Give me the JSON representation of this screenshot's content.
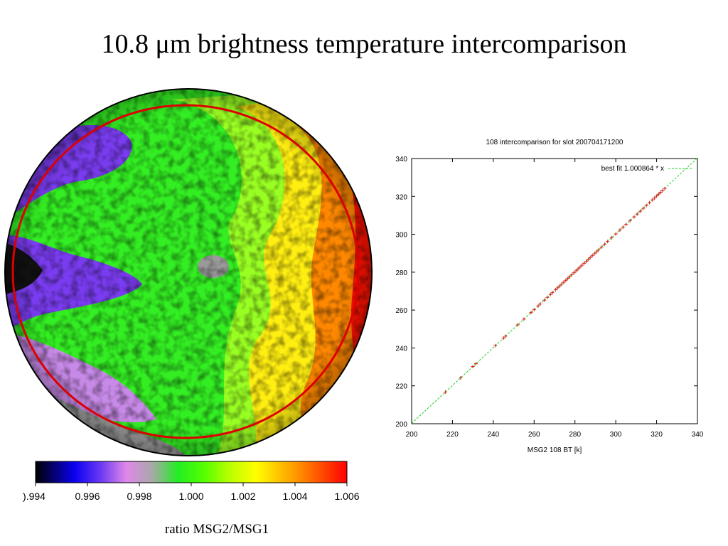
{
  "slide": {
    "title": "10.8 μm brightness temperature intercomparison",
    "caption": "ratio MSG2/MSG1"
  },
  "colorbar": {
    "tick_labels": [
      ").994",
      "0.996",
      "0.998",
      "1.000",
      "1.002",
      "1.004",
      "1.006"
    ],
    "range": [
      0.994,
      1.006
    ],
    "stops": [
      {
        "value": 0.994,
        "color": "#000000"
      },
      {
        "value": 0.9955,
        "color": "#0a00f0"
      },
      {
        "value": 0.9965,
        "color": "#6a38f5"
      },
      {
        "value": 0.9975,
        "color": "#e088e8"
      },
      {
        "value": 0.9985,
        "color": "#a8a8a8"
      },
      {
        "value": 0.9995,
        "color": "#22ee22"
      },
      {
        "value": 1.0005,
        "color": "#55ff00"
      },
      {
        "value": 1.0015,
        "color": "#bbff00"
      },
      {
        "value": 1.0025,
        "color": "#ffff00"
      },
      {
        "value": 1.004,
        "color": "#ff9a00"
      },
      {
        "value": 1.006,
        "color": "#ff0000"
      }
    ]
  },
  "disk": {
    "colors": {
      "green": "#33ee22",
      "lime": "#99ff22",
      "yellow": "#ffee11",
      "orange": "#ff8800",
      "red": "#ff1100",
      "purple": "#7a3cf0",
      "violet": "#c88ae8",
      "grey": "#9a9a9a",
      "ring": "#dd0000"
    }
  },
  "chart_data": {
    "type": "scatter",
    "title": "108 intercomparison for slot 200704171200",
    "xlabel": "MSG2 108 BT [k]",
    "ylabel": "",
    "xlim": [
      200,
      340
    ],
    "ylim": [
      200,
      340
    ],
    "xticks": [
      200,
      220,
      240,
      260,
      280,
      300,
      320,
      340
    ],
    "yticks": [
      200,
      220,
      240,
      260,
      280,
      300,
      320,
      340
    ],
    "grid": false,
    "legend": {
      "label": "best fit 1.000864 * x",
      "placement": "top-right"
    },
    "fit": {
      "slope": 1.000864,
      "color": "#22cc22"
    },
    "series": [
      {
        "marker_color": "#dd2222",
        "points": [
          [
            216.5,
            216.7
          ],
          [
            224,
            224.2
          ],
          [
            230,
            230.2
          ],
          [
            231.5,
            231.7
          ],
          [
            241,
            241.2
          ],
          [
            245,
            245.2
          ],
          [
            246,
            246.2
          ],
          [
            252,
            252.2
          ],
          [
            255,
            255.2
          ],
          [
            258.5,
            258.7
          ],
          [
            260,
            260.2
          ],
          [
            262,
            262.2
          ],
          [
            263,
            263.2
          ],
          [
            265,
            265.2
          ],
          [
            266.5,
            266.7
          ],
          [
            268,
            268.2
          ],
          [
            269,
            269.2
          ],
          [
            270.5,
            270.7
          ],
          [
            271.5,
            271.7
          ],
          [
            272.5,
            272.7
          ],
          [
            273.5,
            273.7
          ],
          [
            274.5,
            274.7
          ],
          [
            275.5,
            275.7
          ],
          [
            276.5,
            276.7
          ],
          [
            277.5,
            277.7
          ],
          [
            278.5,
            278.7
          ],
          [
            279.5,
            279.7
          ],
          [
            280.5,
            280.7
          ],
          [
            281.5,
            281.7
          ],
          [
            282.5,
            282.7
          ],
          [
            283.5,
            283.7
          ],
          [
            284.5,
            284.7
          ],
          [
            285.5,
            285.7
          ],
          [
            286.5,
            286.7
          ],
          [
            287.5,
            287.7
          ],
          [
            288.5,
            288.7
          ],
          [
            289.5,
            289.7
          ],
          [
            290.5,
            290.7
          ],
          [
            291.5,
            291.7
          ],
          [
            293,
            293.2
          ],
          [
            294.5,
            294.7
          ],
          [
            296,
            296.2
          ],
          [
            298,
            298.2
          ],
          [
            300,
            300.2
          ],
          [
            302,
            302.2
          ],
          [
            303.5,
            303.7
          ],
          [
            305,
            305.2
          ],
          [
            307,
            307.2
          ],
          [
            309,
            309.2
          ],
          [
            310.5,
            310.7
          ],
          [
            312,
            312.2
          ],
          [
            313.5,
            313.7
          ],
          [
            315,
            315.2
          ],
          [
            316.5,
            316.7
          ],
          [
            318,
            318.2
          ],
          [
            319,
            319.2
          ],
          [
            320,
            320.2
          ],
          [
            321,
            321.2
          ],
          [
            322,
            322.2
          ],
          [
            323,
            323.2
          ],
          [
            324,
            324.2
          ]
        ]
      }
    ]
  }
}
